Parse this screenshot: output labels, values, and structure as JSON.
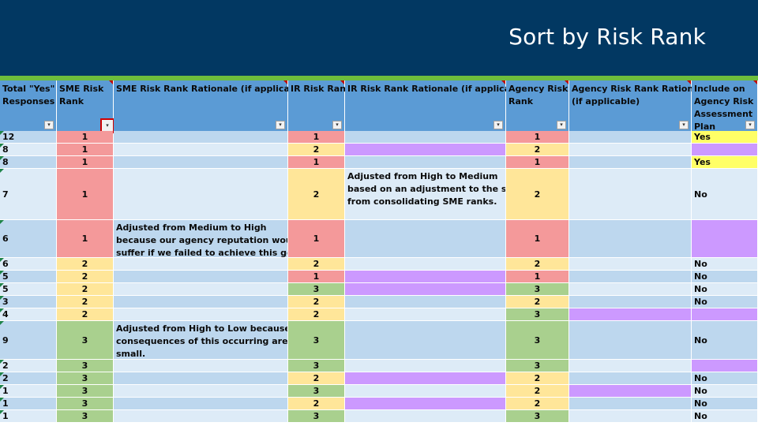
{
  "slide": {
    "title": "Sort by Risk Rank"
  },
  "colors": {
    "banner": "#023862",
    "accent_bar": "#6dbd3c",
    "header": "#5b9bd5",
    "row_light": "#ddebf7",
    "row_dark": "#bdd7ee",
    "high": "#f4999a",
    "medium": "#ffe699",
    "low": "#a9d08e",
    "changed": "#cc99ff",
    "yes": "#ffff66"
  },
  "table": {
    "headers": [
      {
        "line1": "Total \"Yes\"",
        "line2": "Responses",
        "line3": "",
        "line4": ""
      },
      {
        "line1": "SME Risk",
        "line2": "Rank",
        "line3": "",
        "line4": ""
      },
      {
        "line1": "SME Risk Rank Rationale (if applicable)",
        "line2": "",
        "line3": "",
        "line4": ""
      },
      {
        "line1": "IR Risk Rank",
        "line2": "",
        "line3": "",
        "line4": ""
      },
      {
        "line1": "IR Risk Rank Rationale (if applicable)",
        "line2": "",
        "line3": "",
        "line4": ""
      },
      {
        "line1": "Agency Risk",
        "line2": "Rank",
        "line3": "",
        "line4": ""
      },
      {
        "line1": "Agency Risk Rank Rationale",
        "line2": "(if applicable)",
        "line3": "",
        "line4": ""
      },
      {
        "line1": "Include on",
        "line2": "Agency Risk",
        "line3": "Assessment",
        "line4": "Plan"
      }
    ],
    "rows": [
      {
        "total": "12",
        "sme": "1",
        "sme_rationale": "",
        "ir": "1",
        "ir_rationale": "",
        "agency": "1",
        "agency_rationale": "",
        "include": "Yes"
      },
      {
        "total": "8",
        "sme": "1",
        "sme_rationale": "",
        "ir": "2",
        "ir_rationale": "",
        "agency": "2",
        "agency_rationale": "",
        "include": ""
      },
      {
        "total": "8",
        "sme": "1",
        "sme_rationale": "",
        "ir": "1",
        "ir_rationale": "",
        "agency": "1",
        "agency_rationale": "",
        "include": "Yes"
      },
      {
        "total": "7",
        "sme": "1",
        "sme_rationale": "",
        "ir": "2",
        "ir_rationale": "Adjusted from High to Medium|based on an adjustment to the scale|from consolidating SME ranks.",
        "agency": "2",
        "agency_rationale": "",
        "include": "No"
      },
      {
        "total": "6",
        "sme": "1",
        "sme_rationale": "Adjusted from Medium to High|because our agency reputation would|suffer if we failed to achieve this goal.",
        "ir": "1",
        "ir_rationale": "",
        "agency": "1",
        "agency_rationale": "",
        "include": ""
      },
      {
        "total": "6",
        "sme": "2",
        "sme_rationale": "",
        "ir": "2",
        "ir_rationale": "",
        "agency": "2",
        "agency_rationale": "",
        "include": "No"
      },
      {
        "total": "5",
        "sme": "2",
        "sme_rationale": "",
        "ir": "1",
        "ir_rationale": "",
        "agency": "1",
        "agency_rationale": "",
        "include": "No"
      },
      {
        "total": "5",
        "sme": "2",
        "sme_rationale": "",
        "ir": "3",
        "ir_rationale": "",
        "agency": "3",
        "agency_rationale": "",
        "include": "No"
      },
      {
        "total": "3",
        "sme": "2",
        "sme_rationale": "",
        "ir": "2",
        "ir_rationale": "",
        "agency": "2",
        "agency_rationale": "",
        "include": "No"
      },
      {
        "total": "4",
        "sme": "2",
        "sme_rationale": "",
        "ir": "2",
        "ir_rationale": "",
        "agency": "3",
        "agency_rationale": "",
        "include": ""
      },
      {
        "total": "9",
        "sme": "3",
        "sme_rationale": "Adjusted from High to Low because the|consequences of this occurring are very|small.",
        "ir": "3",
        "ir_rationale": "",
        "agency": "3",
        "agency_rationale": "",
        "include": "No"
      },
      {
        "total": "2",
        "sme": "3",
        "sme_rationale": "",
        "ir": "3",
        "ir_rationale": "",
        "agency": "3",
        "agency_rationale": "",
        "include": ""
      },
      {
        "total": "2",
        "sme": "3",
        "sme_rationale": "",
        "ir": "2",
        "ir_rationale": "",
        "agency": "2",
        "agency_rationale": "",
        "include": "No"
      },
      {
        "total": "1",
        "sme": "3",
        "sme_rationale": "",
        "ir": "3",
        "ir_rationale": "",
        "agency": "2",
        "agency_rationale": "",
        "include": "No"
      },
      {
        "total": "1",
        "sme": "3",
        "sme_rationale": "",
        "ir": "2",
        "ir_rationale": "",
        "agency": "2",
        "agency_rationale": "",
        "include": "No"
      },
      {
        "total": "1",
        "sme": "3",
        "sme_rationale": "",
        "ir": "3",
        "ir_rationale": "",
        "agency": "3",
        "agency_rationale": "",
        "include": "No"
      }
    ]
  }
}
